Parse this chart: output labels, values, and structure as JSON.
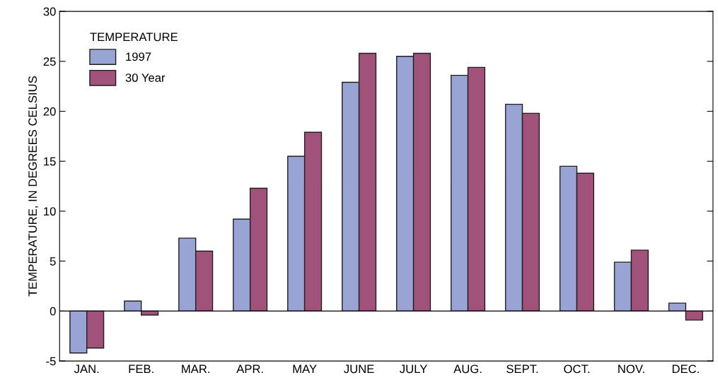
{
  "chart_data": {
    "type": "bar",
    "ylabel": "TEMPERATURE, IN DEGREES CELSIUS",
    "legend_title": "TEMPERATURE",
    "categories": [
      "JAN.",
      "FEB.",
      "MAR.",
      "APR.",
      "MAY",
      "JUNE",
      "JULY",
      "AUG.",
      "SEPT.",
      "OCT.",
      "NOV.",
      "DEC."
    ],
    "series": [
      {
        "name": "1997",
        "color": "#99a3d4",
        "values": [
          -4.2,
          1.0,
          7.3,
          9.2,
          15.5,
          22.9,
          25.5,
          23.6,
          20.7,
          14.5,
          4.9,
          0.8
        ]
      },
      {
        "name": "30 Year",
        "color": "#a0527a",
        "values": [
          -3.7,
          -0.4,
          6.0,
          12.3,
          17.9,
          25.8,
          25.8,
          24.4,
          19.8,
          13.8,
          6.1,
          -0.9
        ]
      }
    ],
    "ylim": [
      -5,
      30
    ],
    "yticks": [
      -5,
      0,
      5,
      10,
      15,
      20,
      25,
      30
    ],
    "ref_lines": [
      {
        "axis": "y",
        "value": 0,
        "color": "#000000"
      }
    ],
    "grid": false,
    "legend": "top left"
  }
}
